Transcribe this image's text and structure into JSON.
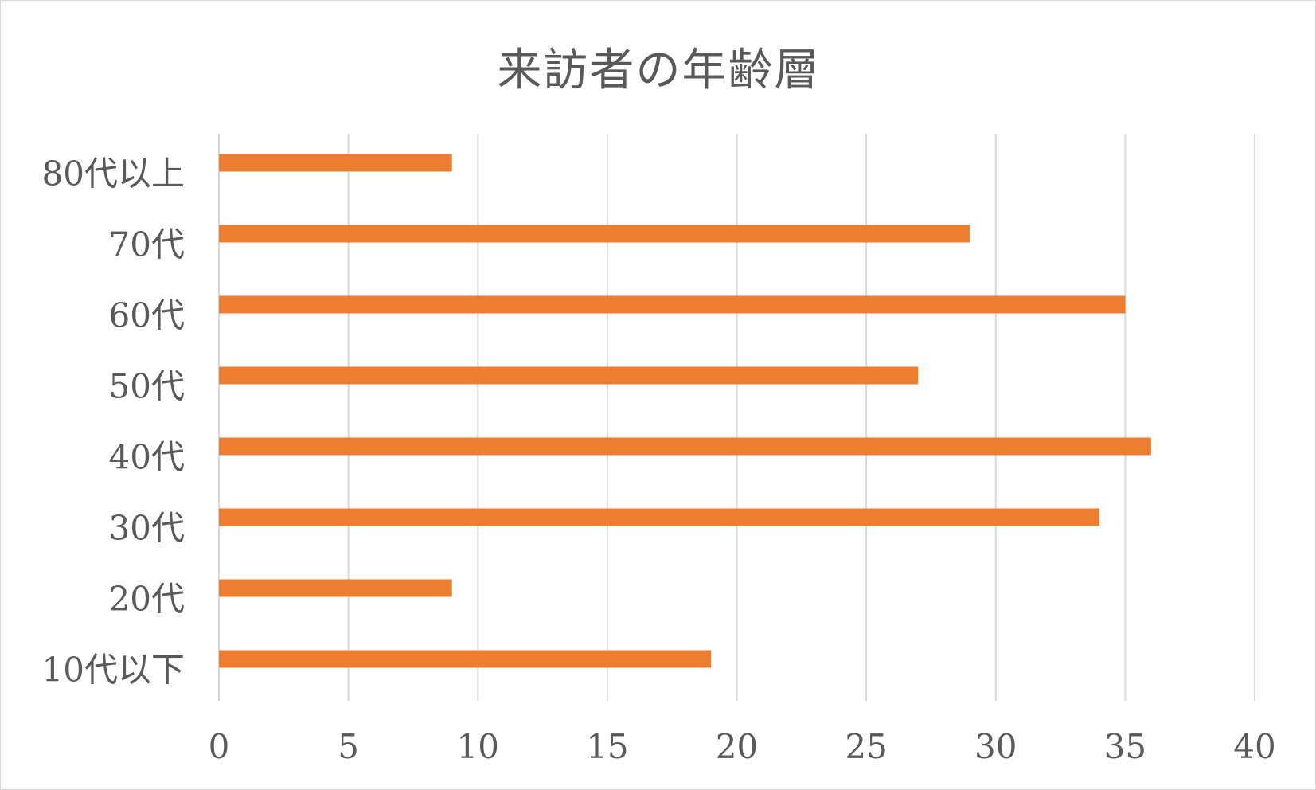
{
  "chart_data": {
    "type": "bar",
    "orientation": "horizontal",
    "title": "来訪者の年齢層",
    "xlabel": "",
    "ylabel": "",
    "categories": [
      "10代以下",
      "20代",
      "30代",
      "40代",
      "50代",
      "60代",
      "70代",
      "80代以上"
    ],
    "values": [
      19,
      9,
      34,
      36,
      27,
      35,
      29,
      9
    ],
    "xlim": [
      0,
      40
    ],
    "x_ticks": [
      "0",
      "5",
      "10",
      "15",
      "20",
      "25",
      "30",
      "35",
      "40"
    ],
    "grid": "vertical",
    "legend": "none",
    "bar_color": "#ed7d31",
    "grid_color": "#d9d9d9",
    "text_color": "#595959"
  }
}
